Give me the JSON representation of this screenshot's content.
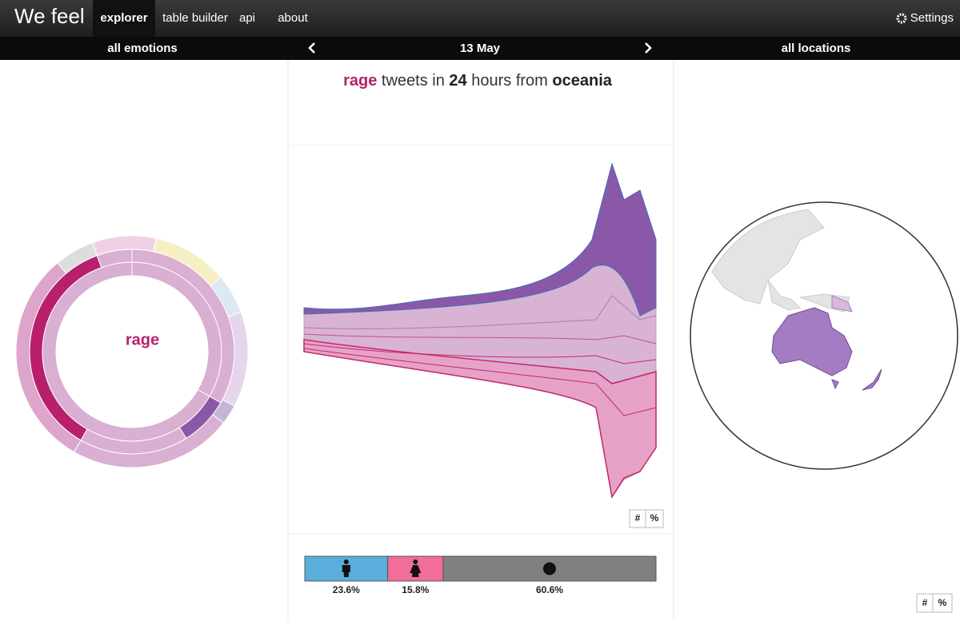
{
  "nav": {
    "brand": "We feel",
    "items": [
      "explorer",
      "table builder",
      "api",
      "about"
    ],
    "settings": "Settings"
  },
  "subnav": {
    "emotions": "all emotions",
    "date": "13 May",
    "locations": "all locations"
  },
  "headline": {
    "emotion": "rage",
    "text1": "tweets in",
    "hours": 24,
    "text2": "hours from",
    "region": "oceania"
  },
  "sunburst": {
    "center_label": "rage"
  },
  "stream_toggle": [
    "#",
    "%"
  ],
  "map_toggle": [
    "#",
    "%"
  ],
  "chart_data": {
    "type": "bar",
    "values": [
      23.6,
      15.8,
      60.6
    ],
    "value_labels": [
      "23.6%",
      "15.8%",
      "60.6%"
    ],
    "colors": [
      "#5aaedc",
      "#f06e98",
      "#808080"
    ]
  }
}
